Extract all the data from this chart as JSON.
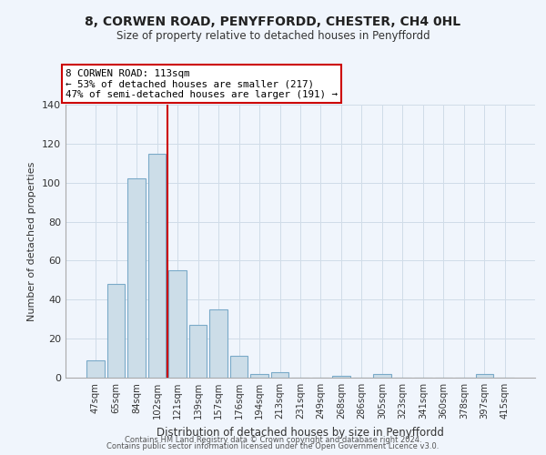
{
  "title_line1": "8, CORWEN ROAD, PENYFFORDD, CHESTER, CH4 0HL",
  "title_line2": "Size of property relative to detached houses in Penyffordd",
  "xlabel": "Distribution of detached houses by size in Penyffordd",
  "ylabel": "Number of detached properties",
  "bar_labels": [
    "47sqm",
    "65sqm",
    "84sqm",
    "102sqm",
    "121sqm",
    "139sqm",
    "157sqm",
    "176sqm",
    "194sqm",
    "213sqm",
    "231sqm",
    "249sqm",
    "268sqm",
    "286sqm",
    "305sqm",
    "323sqm",
    "341sqm",
    "360sqm",
    "378sqm",
    "397sqm",
    "415sqm"
  ],
  "bar_values": [
    9,
    48,
    102,
    115,
    55,
    27,
    35,
    11,
    2,
    3,
    0,
    0,
    1,
    0,
    2,
    0,
    0,
    0,
    0,
    2,
    0
  ],
  "bar_color": "#ccdde8",
  "bar_edge_color": "#7aaac8",
  "ylim": [
    0,
    140
  ],
  "yticks": [
    0,
    20,
    40,
    60,
    80,
    100,
    120,
    140
  ],
  "annotation_box_text": "8 CORWEN ROAD: 113sqm\n← 53% of detached houses are smaller (217)\n47% of semi-detached houses are larger (191) →",
  "annotation_box_color": "#ffffff",
  "annotation_box_edge_color": "#cc0000",
  "footer_line1": "Contains HM Land Registry data © Crown copyright and database right 2024.",
  "footer_line2": "Contains public sector information licensed under the Open Government Licence v3.0.",
  "property_bar_index": 4,
  "property_line_color": "#cc0000",
  "background_color": "#f0f5fc",
  "grid_color": "#d0dce8",
  "spine_color": "#aaaaaa"
}
